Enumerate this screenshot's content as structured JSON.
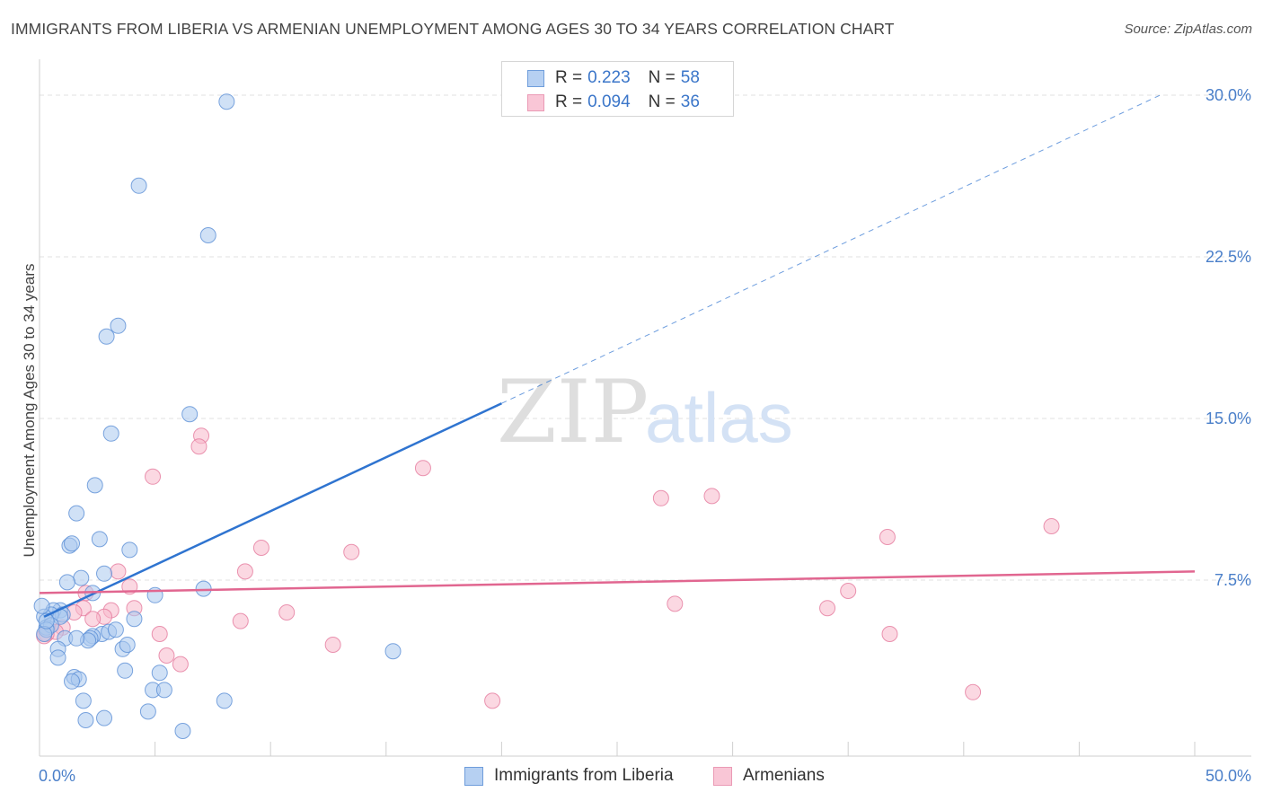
{
  "title": "IMMIGRANTS FROM LIBERIA VS ARMENIAN UNEMPLOYMENT AMONG AGES 30 TO 34 YEARS CORRELATION CHART",
  "source": "Source: ZipAtlas.com",
  "watermark": {
    "zip": "ZIP",
    "atlas": "atlas"
  },
  "legend": {
    "rows": [
      {
        "r_label": "R =",
        "r_value": "0.223",
        "n_label": "N =",
        "n_value": "58"
      },
      {
        "r_label": "R =",
        "r_value": "0.094",
        "n_label": "N =",
        "n_value": "36"
      }
    ]
  },
  "bottom_legend": {
    "series1": "Immigrants from Liberia",
    "series2": "Armenians"
  },
  "colors": {
    "blue_fill": "#a9c8ef",
    "blue_stroke": "#5b8fd6",
    "blue_line": "#2f74d0",
    "pink_fill": "#f7b8cb",
    "pink_stroke": "#e57b9e",
    "pink_line": "#e16690",
    "tick_label": "#4a7fc9",
    "grid": "#e2e2e2"
  },
  "chart_data": {
    "type": "scatter",
    "title": "IMMIGRANTS FROM LIBERIA VS ARMENIAN UNEMPLOYMENT AMONG AGES 30 TO 34 YEARS CORRELATION CHART",
    "xlabel": "",
    "ylabel": "Unemployment Among Ages 30 to 34 years",
    "xlim": [
      0,
      50
    ],
    "ylim": [
      0,
      31.5
    ],
    "x_tick_labels": [
      "0.0%",
      "50.0%"
    ],
    "y_ticks": [
      7.5,
      15.0,
      22.5,
      30.0
    ],
    "y_tick_labels": [
      "7.5%",
      "15.0%",
      "22.5%",
      "30.0%"
    ],
    "grid": true,
    "series": [
      {
        "name": "Immigrants from Liberia",
        "color": "blue",
        "trend": {
          "x0": 0.2,
          "y0": 5.8,
          "x1": 20.0,
          "y1": 15.7,
          "dash_x1": 48.5,
          "dash_y1": 30.0
        },
        "points": [
          [
            8.1,
            29.7
          ],
          [
            4.3,
            25.8
          ],
          [
            7.3,
            23.5
          ],
          [
            3.4,
            19.3
          ],
          [
            2.9,
            18.8
          ],
          [
            6.5,
            15.2
          ],
          [
            3.1,
            14.3
          ],
          [
            2.4,
            11.9
          ],
          [
            1.6,
            10.6
          ],
          [
            2.6,
            9.4
          ],
          [
            1.3,
            9.1
          ],
          [
            1.4,
            9.2
          ],
          [
            3.9,
            8.9
          ],
          [
            2.8,
            7.8
          ],
          [
            1.8,
            7.6
          ],
          [
            1.2,
            7.4
          ],
          [
            2.3,
            6.9
          ],
          [
            7.1,
            7.1
          ],
          [
            5.0,
            6.8
          ],
          [
            0.9,
            6.1
          ],
          [
            0.6,
            6.1
          ],
          [
            1.0,
            5.9
          ],
          [
            0.5,
            5.9
          ],
          [
            0.2,
            5.8
          ],
          [
            0.9,
            5.8
          ],
          [
            0.3,
            5.3
          ],
          [
            0.5,
            5.4
          ],
          [
            0.3,
            5.2
          ],
          [
            0.2,
            5.0
          ],
          [
            4.1,
            5.7
          ],
          [
            2.7,
            5.0
          ],
          [
            3.0,
            5.1
          ],
          [
            3.3,
            5.2
          ],
          [
            2.3,
            4.9
          ],
          [
            2.2,
            4.8
          ],
          [
            1.1,
            4.8
          ],
          [
            2.1,
            4.7
          ],
          [
            1.6,
            4.8
          ],
          [
            0.8,
            4.3
          ],
          [
            3.6,
            4.3
          ],
          [
            3.8,
            4.5
          ],
          [
            0.8,
            3.9
          ],
          [
            15.3,
            4.2
          ],
          [
            3.7,
            3.3
          ],
          [
            5.2,
            3.2
          ],
          [
            1.5,
            3.0
          ],
          [
            1.7,
            2.9
          ],
          [
            1.4,
            2.8
          ],
          [
            4.9,
            2.4
          ],
          [
            5.4,
            2.4
          ],
          [
            1.9,
            1.9
          ],
          [
            8.0,
            1.9
          ],
          [
            4.7,
            1.4
          ],
          [
            2.8,
            1.1
          ],
          [
            2.0,
            1.0
          ],
          [
            6.2,
            0.5
          ],
          [
            0.1,
            6.3
          ],
          [
            0.3,
            5.6
          ]
        ]
      },
      {
        "name": "Armenians",
        "color": "pink",
        "trend": {
          "x0": 0,
          "y0": 6.9,
          "x1": 50,
          "y1": 7.9
        },
        "points": [
          [
            7.0,
            14.2
          ],
          [
            6.9,
            13.7
          ],
          [
            16.6,
            12.7
          ],
          [
            4.9,
            12.3
          ],
          [
            29.1,
            11.4
          ],
          [
            26.9,
            11.3
          ],
          [
            43.8,
            10.0
          ],
          [
            36.7,
            9.5
          ],
          [
            9.6,
            9.0
          ],
          [
            13.5,
            8.8
          ],
          [
            3.4,
            7.9
          ],
          [
            8.9,
            7.9
          ],
          [
            3.9,
            7.2
          ],
          [
            2.0,
            6.9
          ],
          [
            35.0,
            7.0
          ],
          [
            27.5,
            6.4
          ],
          [
            1.9,
            6.2
          ],
          [
            4.1,
            6.2
          ],
          [
            34.1,
            6.2
          ],
          [
            10.7,
            6.0
          ],
          [
            3.1,
            6.1
          ],
          [
            1.5,
            6.0
          ],
          [
            2.8,
            5.8
          ],
          [
            2.3,
            5.7
          ],
          [
            8.7,
            5.6
          ],
          [
            1.0,
            5.3
          ],
          [
            0.7,
            5.1
          ],
          [
            0.3,
            5.0
          ],
          [
            0.2,
            4.9
          ],
          [
            5.2,
            5.0
          ],
          [
            36.8,
            5.0
          ],
          [
            12.7,
            4.5
          ],
          [
            5.5,
            4.0
          ],
          [
            6.1,
            3.6
          ],
          [
            40.4,
            2.3
          ],
          [
            19.6,
            1.9
          ]
        ]
      }
    ]
  }
}
